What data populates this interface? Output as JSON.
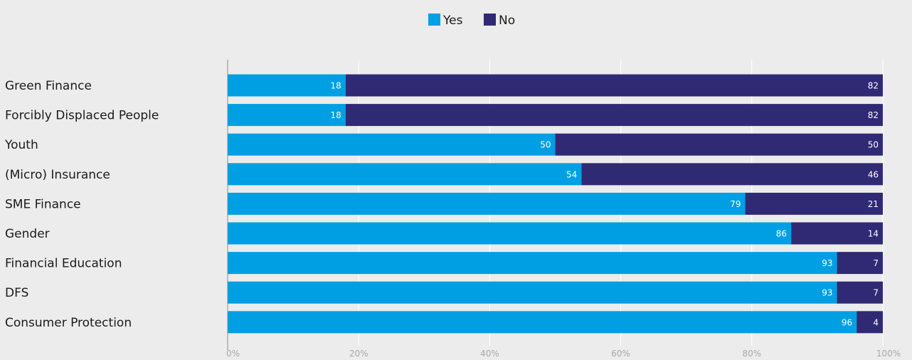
{
  "chart_data": {
    "type": "bar",
    "orientation": "horizontal",
    "stacked": "percent",
    "categories": [
      "Green Finance",
      "Forcibly Displaced People",
      "Youth",
      "(Micro) Insurance",
      "SME Finance",
      "Gender",
      "Financial Education",
      "DFS",
      "Consumer Protection"
    ],
    "series": [
      {
        "name": "Yes",
        "color": "#009fe3",
        "values": [
          18,
          18,
          50,
          54,
          79,
          86,
          93,
          93,
          96
        ]
      },
      {
        "name": "No",
        "color": "#302a75",
        "values": [
          82,
          82,
          50,
          46,
          21,
          14,
          7,
          7,
          4
        ]
      }
    ],
    "xlim": [
      0,
      100
    ],
    "xticks": [
      "0%",
      "20%",
      "40%",
      "60%",
      "80%",
      "100%"
    ],
    "legend_position": "top-center",
    "grid": true
  }
}
